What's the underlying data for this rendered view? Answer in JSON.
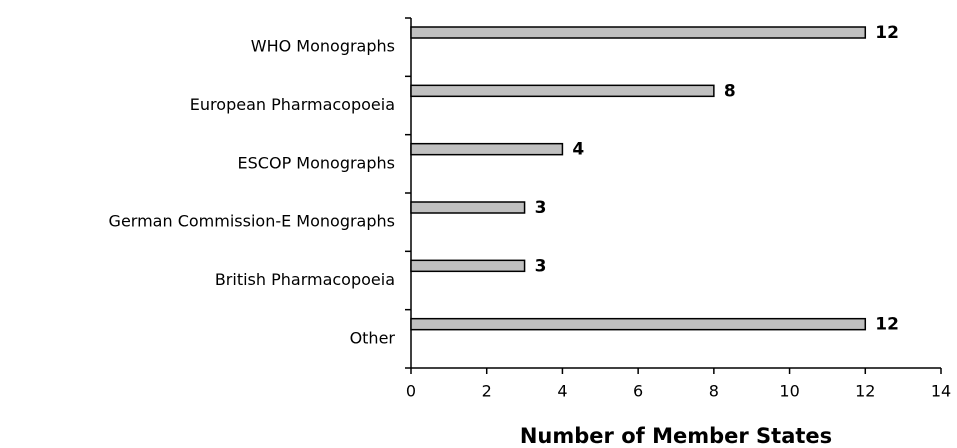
{
  "chart_data": {
    "type": "barh",
    "x_label": "Number of Member States",
    "categories": [
      "WHO Monographs",
      "European Pharmacopoeia",
      "ESCOP Monographs",
      "German Commission-E Monographs",
      "British Pharmacopoeia",
      "Other"
    ],
    "values": [
      12,
      8,
      4,
      3,
      3,
      12
    ],
    "color": "#c0c0c0",
    "xlim": [
      0,
      14
    ],
    "xticks": [
      0,
      2,
      4,
      6,
      8,
      10,
      12,
      14
    ],
    "grid": false
  }
}
